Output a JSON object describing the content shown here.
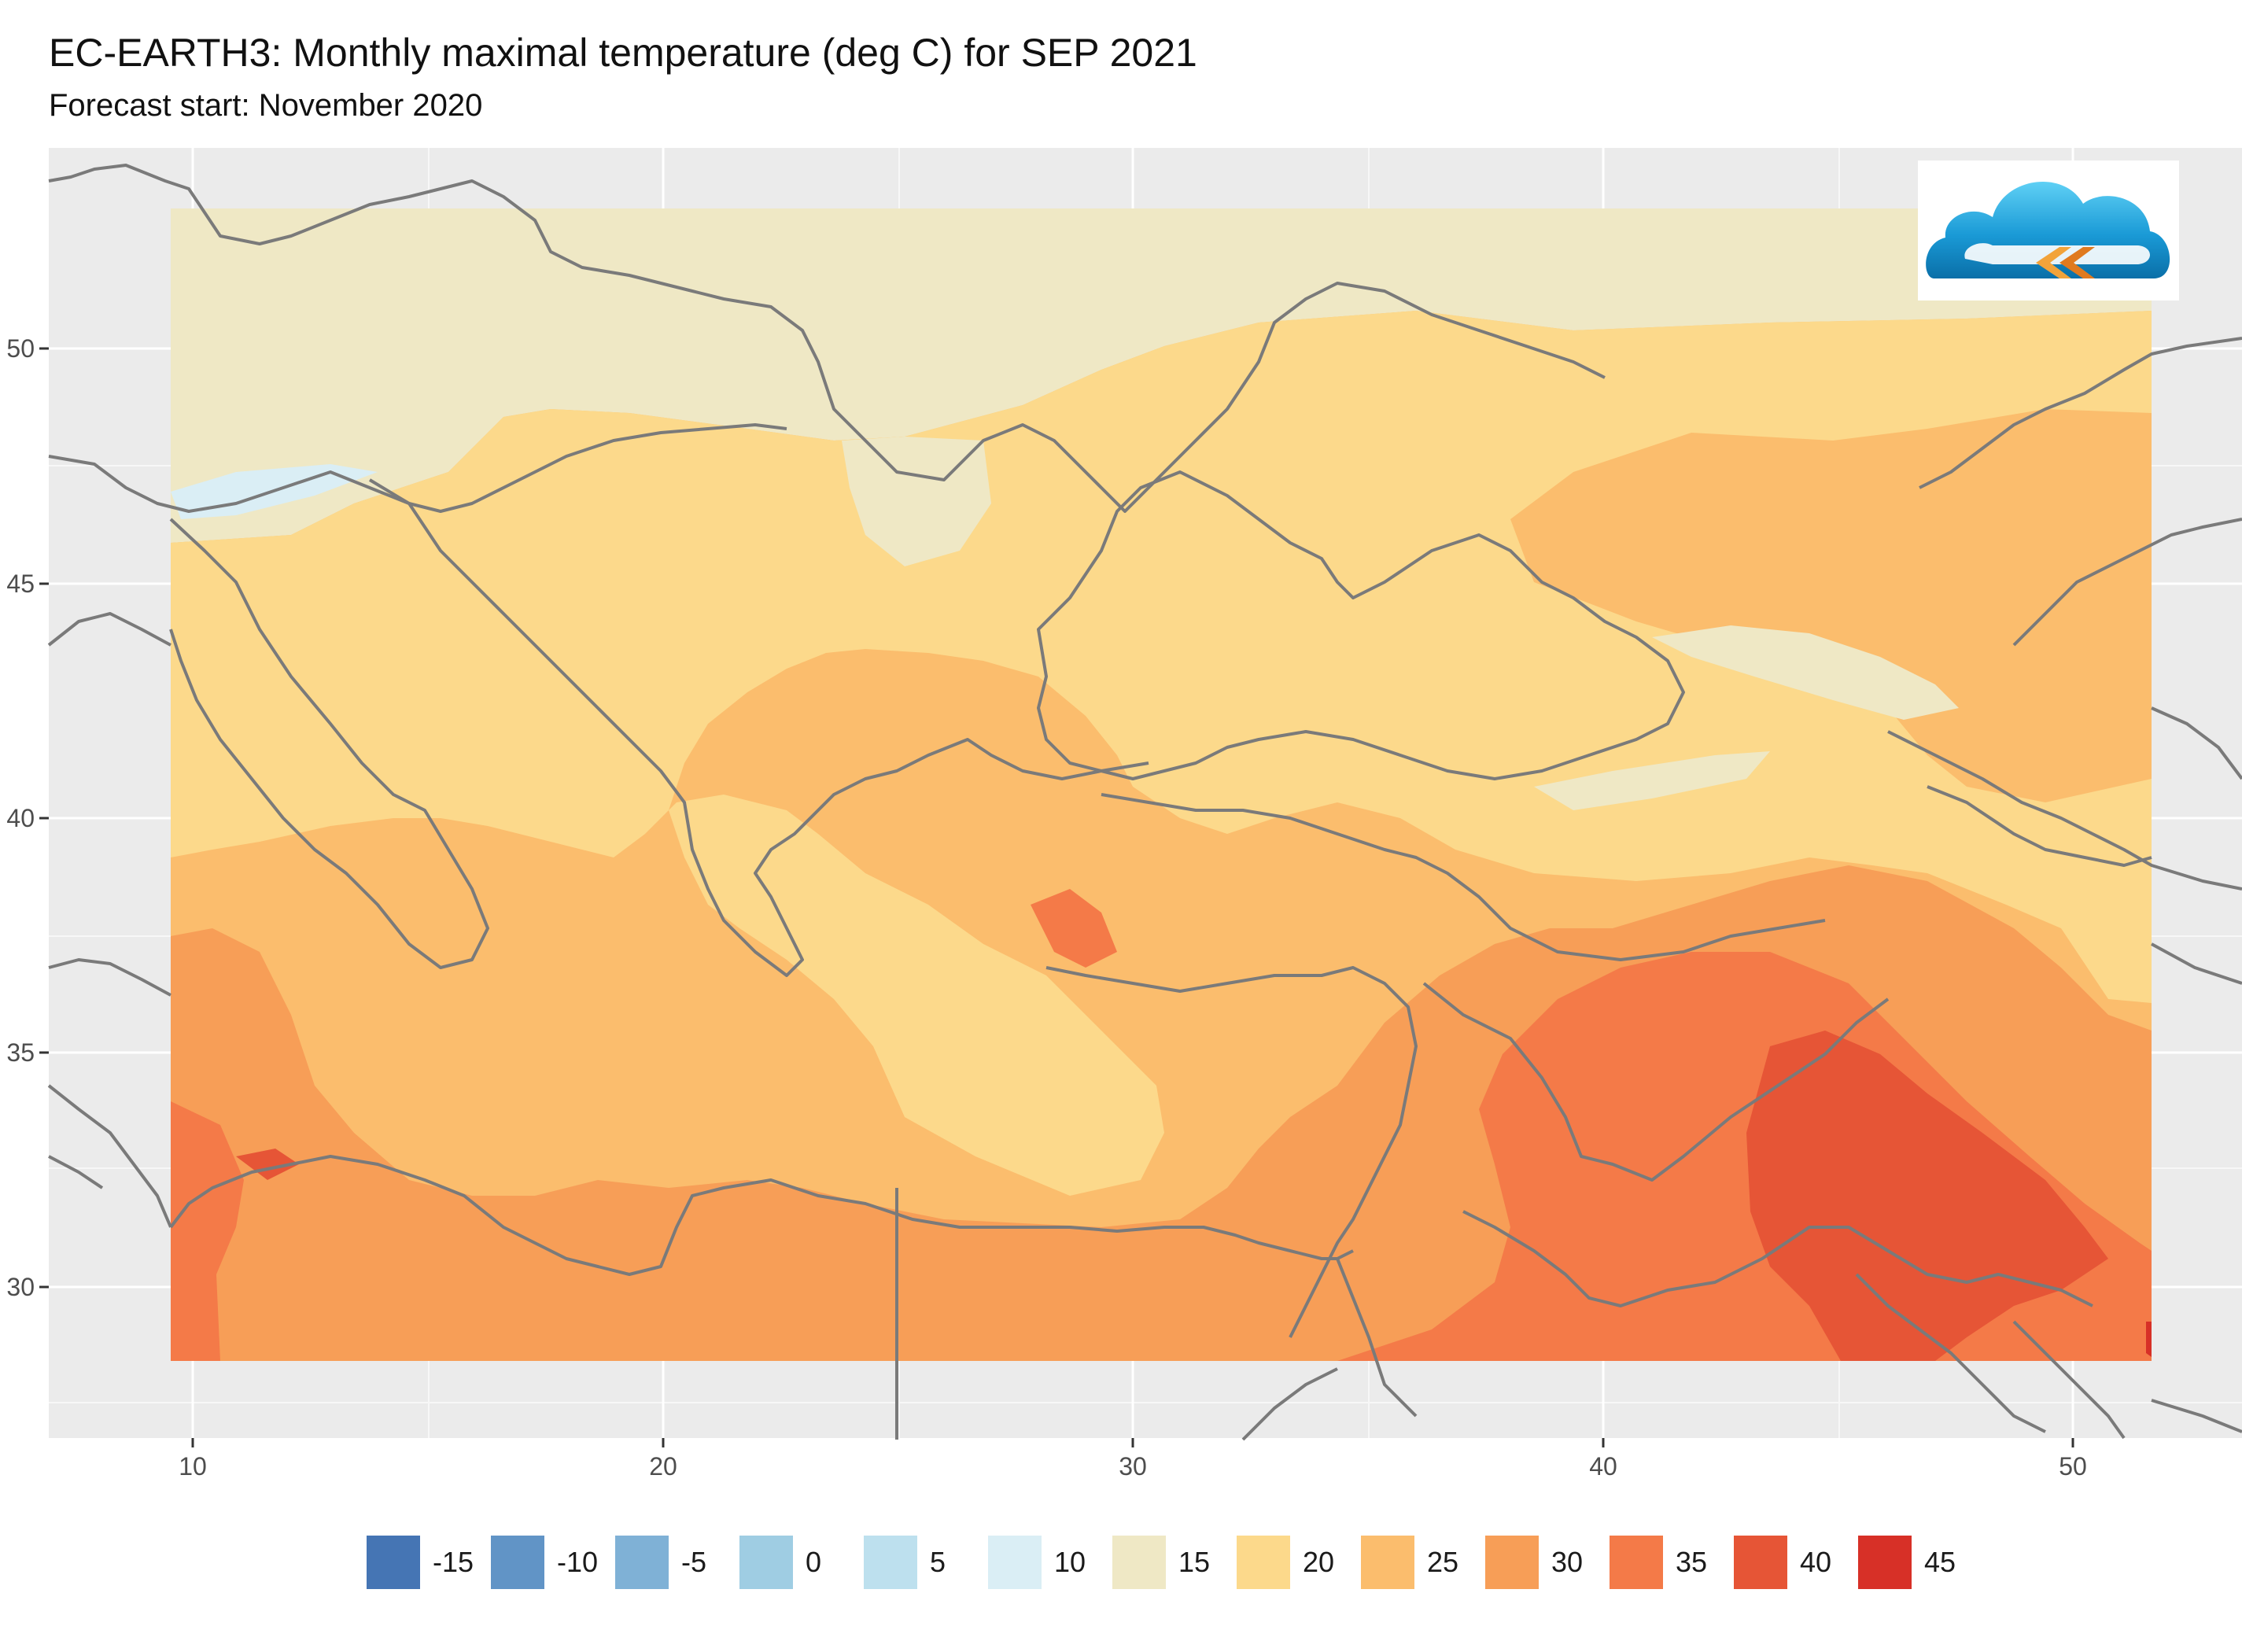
{
  "header": {
    "title": "EC-EARTH3: Monthly maximal temperature (deg C) for SEP 2021",
    "subtitle": "Forecast start: November 2020"
  },
  "map": {
    "variable": "Monthly maximal temperature (deg C)",
    "month": "SEP 2021",
    "x_axis": {
      "ticks": [
        "10",
        "20",
        "30",
        "40",
        "50"
      ]
    },
    "y_axis": {
      "ticks": [
        "50",
        "45",
        "40",
        "35",
        "30"
      ]
    },
    "panel_background": "#ebebeb",
    "gridline_color": "#ffffff",
    "border_color": "#808080"
  },
  "legend": {
    "items": [
      {
        "label": "-15",
        "color": "#4575b4"
      },
      {
        "label": "-10",
        "color": "#6194c6"
      },
      {
        "label": "-5",
        "color": "#7fb1d6"
      },
      {
        "label": "0",
        "color": "#9fcde3"
      },
      {
        "label": "5",
        "color": "#bde0ee"
      },
      {
        "label": "10",
        "color": "#daeef5"
      },
      {
        "label": "15",
        "color": "#efe8c5"
      },
      {
        "label": "20",
        "color": "#fcd98b"
      },
      {
        "label": "25",
        "color": "#fbbd6d"
      },
      {
        "label": "30",
        "color": "#f79e57"
      },
      {
        "label": "35",
        "color": "#f47a48"
      },
      {
        "label": "40",
        "color": "#e65536"
      },
      {
        "label": "45",
        "color": "#d73027"
      }
    ]
  },
  "logo": {
    "icon": "cloud-logo-icon"
  }
}
